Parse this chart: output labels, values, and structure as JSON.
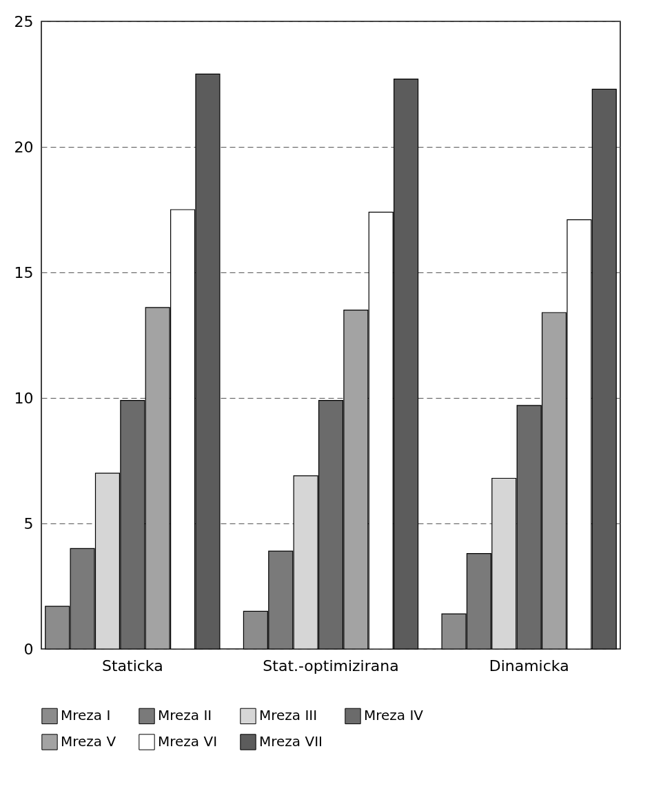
{
  "chart_data": {
    "type": "bar",
    "categories": [
      "Staticka",
      "Stat.-optimizirana",
      "Dinamicka"
    ],
    "series": [
      {
        "name": "Mreza I",
        "color": "#8c8c8c",
        "values": [
          1.7,
          1.5,
          1.4
        ]
      },
      {
        "name": "Mreza II",
        "color": "#7a7a7a",
        "values": [
          4.0,
          3.9,
          3.8
        ]
      },
      {
        "name": "Mreza III",
        "color": "#d6d6d6",
        "values": [
          7.0,
          6.9,
          6.8
        ]
      },
      {
        "name": "Mreza IV",
        "color": "#6b6b6b",
        "values": [
          9.9,
          9.9,
          9.7
        ]
      },
      {
        "name": "Mreza V",
        "color": "#a3a3a3",
        "values": [
          13.6,
          13.5,
          13.4
        ]
      },
      {
        "name": "Mreza VI",
        "color": "#ffffff",
        "values": [
          17.5,
          17.4,
          17.1
        ]
      },
      {
        "name": "Mreza VII",
        "color": "#5c5c5c",
        "values": [
          22.9,
          22.7,
          22.3
        ]
      }
    ],
    "ylim": [
      0,
      25
    ],
    "yticks": [
      0,
      5,
      10,
      15,
      20,
      25
    ],
    "grid": "y",
    "legend": "bottom"
  }
}
